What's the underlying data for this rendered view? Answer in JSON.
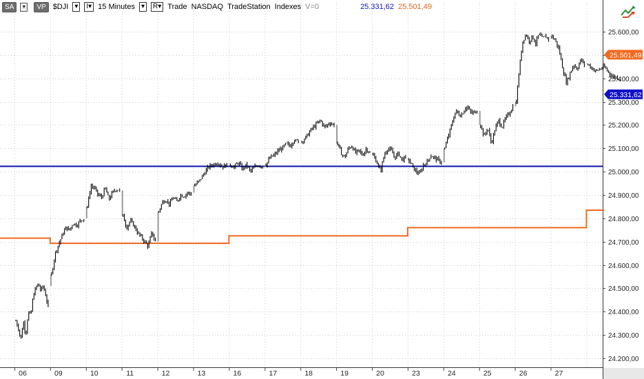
{
  "toolbar": {
    "sa_label": "SA",
    "vp_label": "VP",
    "symbol": "$DJI",
    "interval_menu_label": "I",
    "interval": "15 Minutes",
    "range_menu_label": "R",
    "data_type": "Trade",
    "exchange": "NASDAQ",
    "source": "TradeStation",
    "category": "Indexes",
    "volume": "V=0",
    "last_price": "25.331,62",
    "line_price": "25.501,49"
  },
  "colors": {
    "last_price": "#1010c8",
    "orange_line": "#f2691f",
    "horizontal_line": "#0a14a8",
    "bars": "#000000",
    "grid": "#c8c8c8"
  },
  "icons": {
    "corner": "chart-trend-arrows-icon"
  },
  "chart_data": {
    "type": "ohlc",
    "grid": true,
    "y_axis_side": "right",
    "ylim": [
      24150,
      25680
    ],
    "y_ticks": [
      {
        "value": 24200,
        "label": "24.200,00"
      },
      {
        "value": 24300,
        "label": "24.300,00"
      },
      {
        "value": 24400,
        "label": "24.400,00"
      },
      {
        "value": 24500,
        "label": "24.500,00"
      },
      {
        "value": 24600,
        "label": "24.600,00"
      },
      {
        "value": 24700,
        "label": "24.700,00"
      },
      {
        "value": 24800,
        "label": "24.800,00"
      },
      {
        "value": 24900,
        "label": "24.900,00"
      },
      {
        "value": 25000,
        "label": "25.000,00"
      },
      {
        "value": 25100,
        "label": "25.100,00"
      },
      {
        "value": 25200,
        "label": "25.200,00"
      },
      {
        "value": 25300,
        "label": "25.300,00"
      },
      {
        "value": 25400,
        "label": "25.400,00"
      },
      {
        "value": 25500,
        "label": "25.500,00"
      },
      {
        "value": 25600,
        "label": "25.600,00"
      }
    ],
    "x_ticks": [
      "06",
      "09",
      "10",
      "11",
      "12",
      "13",
      "16",
      "17",
      "18",
      "19",
      "20",
      "23",
      "24",
      "25",
      "26",
      "27"
    ],
    "price_tags": [
      {
        "value": 25501.49,
        "label": "25.501,49",
        "color": "#f2691f"
      },
      {
        "value": 25331.62,
        "label": "25.331,62",
        "color": "#1010c8"
      }
    ],
    "horizontal_line": 25023,
    "orange_step_line": [
      {
        "x_start": -0.6,
        "x_end": 1.0,
        "y": 24715
      },
      {
        "x_start": 1.0,
        "x_end": 6.0,
        "y": 24693
      },
      {
        "x_start": 6.0,
        "x_end": 11.0,
        "y": 24725
      },
      {
        "x_start": 11.0,
        "x_end": 16.0,
        "y": 24760
      },
      {
        "x_start": 16.0,
        "x_end": 16.5,
        "y": 24835
      }
    ],
    "days": [
      {
        "label": "06",
        "open": 24360,
        "close": 24510,
        "lo": 24245,
        "hi": 24520,
        "path": [
          24360,
          24330,
          24280,
          24360,
          24300,
          24400,
          24380,
          24470,
          24500,
          24520,
          24490,
          24510,
          24470,
          24420
        ]
      },
      {
        "label": "09",
        "open": 24560,
        "close": 24800,
        "lo": 24550,
        "hi": 24805,
        "path": [
          24560,
          24650,
          24690,
          24730,
          24760,
          24750,
          24780,
          24770,
          24790,
          24800
        ]
      },
      {
        "label": "10",
        "open": 24850,
        "close": 24920,
        "lo": 24840,
        "hi": 24950,
        "path": [
          24850,
          24940,
          24930,
          24900,
          24890,
          24930,
          24880,
          24910,
          24925,
          24920
        ]
      },
      {
        "label": "11",
        "open": 24810,
        "close": 24700,
        "lo": 24660,
        "hi": 24820,
        "path": [
          24810,
          24760,
          24790,
          24770,
          24740,
          24720,
          24700,
          24680,
          24740,
          24700
        ]
      },
      {
        "label": "12",
        "open": 24830,
        "close": 24910,
        "lo": 24810,
        "hi": 24920,
        "path": [
          24830,
          24870,
          24880,
          24860,
          24890,
          24870,
          24900,
          24895,
          24910,
          24905
        ]
      },
      {
        "label": "13",
        "open": 24940,
        "close": 25030,
        "lo": 24930,
        "hi": 25040,
        "path": [
          24940,
          24960,
          24990,
          25020,
          25030,
          25040,
          25020,
          25030
        ]
      },
      {
        "label": "16",
        "open": 25030,
        "close": 25020,
        "lo": 24990,
        "hi": 25045,
        "path": [
          25030,
          25020,
          25040,
          25010,
          25030,
          25000,
          25020,
          25030,
          25020
        ]
      },
      {
        "label": "17",
        "open": 25030,
        "close": 25130,
        "lo": 25000,
        "hi": 25140,
        "path": [
          25030,
          25060,
          25070,
          25090,
          25100,
          25120,
          25110,
          25140,
          25130
        ]
      },
      {
        "label": "18",
        "open": 25130,
        "close": 25200,
        "lo": 25100,
        "hi": 25225,
        "path": [
          25130,
          25150,
          25180,
          25200,
          25220,
          25190,
          25210,
          25200
        ]
      },
      {
        "label": "19",
        "open": 25120,
        "close": 25080,
        "lo": 25050,
        "hi": 25145,
        "path": [
          25120,
          25080,
          25060,
          25100,
          25110,
          25080,
          25090,
          25070,
          25100,
          25080
        ]
      },
      {
        "label": "20",
        "open": 25070,
        "close": 25060,
        "lo": 24985,
        "hi": 25110,
        "path": [
          25070,
          25040,
          25000,
          25070,
          25100,
          25090,
          25060,
          25080,
          25050,
          25060
        ]
      },
      {
        "label": "23",
        "open": 25050,
        "close": 25040,
        "lo": 24985,
        "hi": 25080,
        "path": [
          25050,
          25020,
          25000,
          24990,
          25030,
          25040,
          25070,
          25060,
          25050,
          25040
        ]
      },
      {
        "label": "24",
        "open": 25100,
        "close": 25260,
        "lo": 25095,
        "hi": 25285,
        "path": [
          25100,
          25180,
          25260,
          25240,
          25280,
          25250,
          25260
        ]
      },
      {
        "label": "25",
        "open": 25200,
        "close": 25280,
        "lo": 25110,
        "hi": 25290,
        "path": [
          25200,
          25150,
          25190,
          25120,
          25180,
          25220,
          25190,
          25230,
          25250,
          25280
        ]
      },
      {
        "label": "26",
        "open": 25300,
        "close": 25570,
        "lo": 25290,
        "hi": 25600,
        "path": [
          25300,
          25450,
          25560,
          25590,
          25560,
          25580,
          25550,
          25590,
          25570,
          25580,
          25570
        ]
      },
      {
        "label": "27",
        "open": 25580,
        "close": 25460,
        "lo": 25370,
        "hi": 25590,
        "path": [
          25580,
          25560,
          25520,
          25440,
          25380,
          25420,
          25460,
          25440,
          25480,
          25460
        ]
      },
      {
        "label": "",
        "open": 25460,
        "close": 25400,
        "lo": 25370,
        "hi": 25470,
        "path": [
          25460,
          25430,
          25450,
          25410,
          25400
        ]
      }
    ]
  }
}
